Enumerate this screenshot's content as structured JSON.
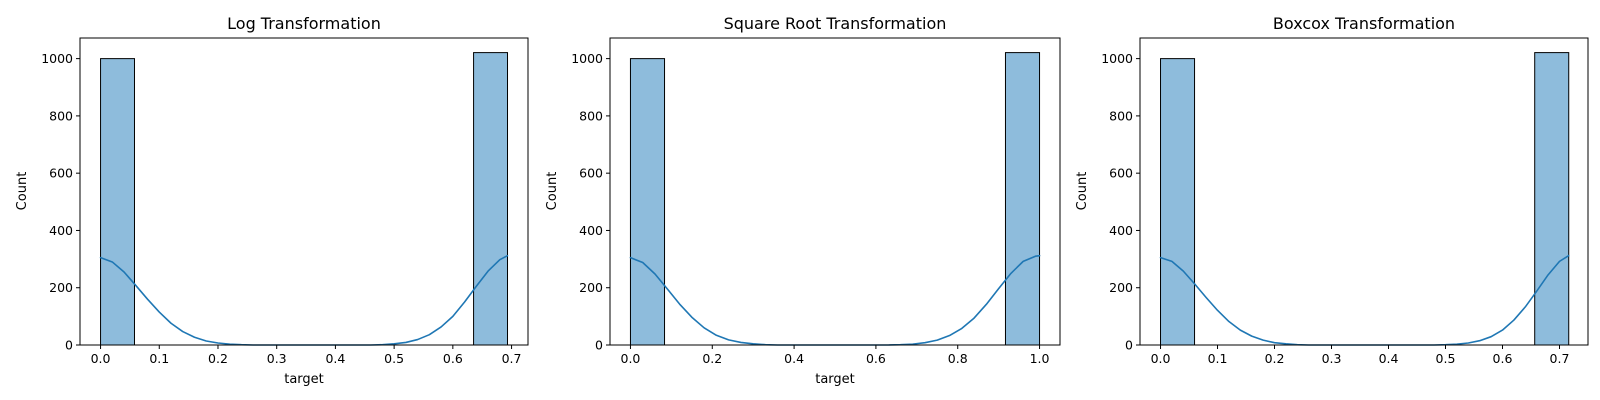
{
  "figure": {
    "background": "#ffffff"
  },
  "style": {
    "bar_fill": "#8ebcdc",
    "bar_edge": "#000000",
    "kde_color": "#1f77b4",
    "axes_color": "#000000"
  },
  "chart_data": [
    {
      "type": "bar",
      "subtype": "histogram-with-kde",
      "title": "Log Transformation",
      "xlabel": "target",
      "ylabel": "Count",
      "xlim": [
        -0.035,
        0.728
      ],
      "ylim": [
        0,
        1072
      ],
      "xticks": [
        0.0,
        0.1,
        0.2,
        0.3,
        0.4,
        0.5,
        0.6,
        0.7
      ],
      "xtick_labels": [
        "0.0",
        "0.1",
        "0.2",
        "0.3",
        "0.4",
        "0.5",
        "0.6",
        "0.7"
      ],
      "yticks": [
        0,
        200,
        400,
        600,
        800,
        1000
      ],
      "ytick_labels": [
        "0",
        "200",
        "400",
        "600",
        "800",
        "1000"
      ],
      "grid": false,
      "bins": [
        {
          "x0": 0.0,
          "x1": 0.0578,
          "count": 1000
        },
        {
          "x0": 0.6353,
          "x1": 0.6931,
          "count": 1021
        }
      ],
      "kde": {
        "x": [
          0.0,
          0.02,
          0.04,
          0.06,
          0.08,
          0.1,
          0.12,
          0.14,
          0.16,
          0.18,
          0.2,
          0.22,
          0.24,
          0.26,
          0.28,
          0.3,
          0.32,
          0.34,
          0.36,
          0.38,
          0.4,
          0.42,
          0.44,
          0.46,
          0.48,
          0.5,
          0.52,
          0.54,
          0.56,
          0.58,
          0.6,
          0.62,
          0.64,
          0.66,
          0.68,
          0.693
        ],
        "y": [
          305,
          290,
          255,
          208,
          160,
          115,
          76,
          47,
          27,
          14,
          7,
          3,
          1,
          0,
          0,
          0,
          0,
          0,
          0,
          0,
          0,
          0,
          0,
          0,
          1,
          4,
          9,
          19,
          36,
          63,
          100,
          150,
          205,
          258,
          298,
          312
        ]
      }
    },
    {
      "type": "bar",
      "subtype": "histogram-with-kde",
      "title": "Square Root Transformation",
      "xlabel": "target",
      "ylabel": "Count",
      "xlim": [
        -0.05,
        1.05
      ],
      "ylim": [
        0,
        1072
      ],
      "xticks": [
        0.0,
        0.2,
        0.4,
        0.6,
        0.8,
        1.0
      ],
      "xtick_labels": [
        "0.0",
        "0.2",
        "0.4",
        "0.6",
        "0.8",
        "1.0"
      ],
      "yticks": [
        0,
        200,
        400,
        600,
        800,
        1000
      ],
      "ytick_labels": [
        "0",
        "200",
        "400",
        "600",
        "800",
        "1000"
      ],
      "grid": false,
      "bins": [
        {
          "x0": 0.0,
          "x1": 0.0833,
          "count": 1000
        },
        {
          "x0": 0.9167,
          "x1": 1.0,
          "count": 1021
        }
      ],
      "kde": {
        "x": [
          0.0,
          0.03,
          0.06,
          0.09,
          0.12,
          0.15,
          0.18,
          0.21,
          0.24,
          0.27,
          0.3,
          0.33,
          0.36,
          0.39,
          0.42,
          0.45,
          0.48,
          0.51,
          0.54,
          0.57,
          0.6,
          0.63,
          0.66,
          0.69,
          0.72,
          0.75,
          0.78,
          0.81,
          0.84,
          0.87,
          0.9,
          0.93,
          0.96,
          0.99,
          1.0
        ],
        "y": [
          305,
          288,
          248,
          196,
          143,
          97,
          60,
          34,
          18,
          9,
          4,
          1,
          0,
          0,
          0,
          0,
          0,
          0,
          0,
          0,
          0,
          0,
          1,
          3,
          8,
          17,
          33,
          58,
          94,
          142,
          197,
          250,
          292,
          310,
          312
        ]
      }
    },
    {
      "type": "bar",
      "subtype": "histogram-with-kde",
      "title": "Boxcox Transformation",
      "xlabel": "",
      "ylabel": "Count",
      "xlim": [
        -0.036,
        0.75
      ],
      "ylim": [
        0,
        1072
      ],
      "xticks": [
        0.0,
        0.1,
        0.2,
        0.3,
        0.4,
        0.5,
        0.6,
        0.7
      ],
      "xtick_labels": [
        "0.0",
        "0.1",
        "0.2",
        "0.3",
        "0.4",
        "0.5",
        "0.6",
        "0.7"
      ],
      "yticks": [
        0,
        200,
        400,
        600,
        800,
        1000
      ],
      "ytick_labels": [
        "0",
        "200",
        "400",
        "600",
        "800",
        "1000"
      ],
      "grid": false,
      "bins": [
        {
          "x0": 0.0,
          "x1": 0.0597,
          "count": 1000
        },
        {
          "x0": 0.6565,
          "x1": 0.7162,
          "count": 1021
        }
      ],
      "kde": {
        "x": [
          0.0,
          0.02,
          0.04,
          0.06,
          0.08,
          0.1,
          0.12,
          0.14,
          0.16,
          0.18,
          0.2,
          0.22,
          0.24,
          0.26,
          0.28,
          0.3,
          0.32,
          0.34,
          0.36,
          0.38,
          0.4,
          0.42,
          0.44,
          0.46,
          0.48,
          0.5,
          0.52,
          0.54,
          0.56,
          0.58,
          0.6,
          0.62,
          0.64,
          0.66,
          0.68,
          0.7,
          0.716
        ],
        "y": [
          305,
          292,
          258,
          213,
          166,
          121,
          82,
          52,
          31,
          17,
          8,
          4,
          1,
          0,
          0,
          0,
          0,
          0,
          0,
          0,
          0,
          0,
          0,
          0,
          0,
          1,
          3,
          7,
          15,
          29,
          52,
          87,
          133,
          188,
          245,
          292,
          312
        ]
      }
    }
  ]
}
